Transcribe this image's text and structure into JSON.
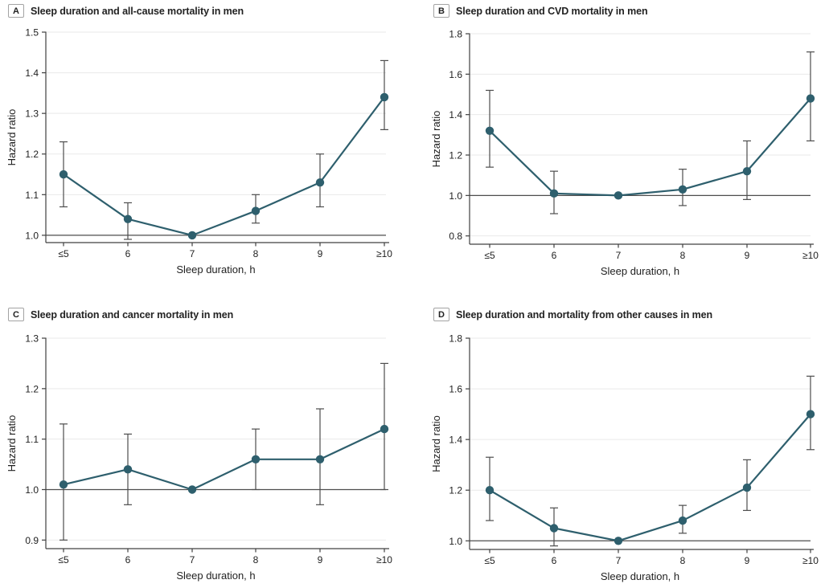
{
  "figure": {
    "description": "Four-panel hazard ratio figure of sleep duration and mortality in men",
    "panels": [
      "A",
      "B",
      "C",
      "D"
    ]
  },
  "colors": {
    "series": "#2E5F6D",
    "error_bar": "#4d4d4d",
    "axis": "#404040",
    "grid": "#e9e9e9",
    "reference_line": "#4d4d4d",
    "text": "#1f1f1f"
  },
  "chart_data": [
    {
      "panel": "A",
      "type": "line",
      "title": "Sleep duration and all-cause mortality in men",
      "xlabel": "Sleep duration, h",
      "ylabel": "Hazard ratio",
      "categories": [
        "≤5",
        "6",
        "7",
        "8",
        "9",
        "≥10"
      ],
      "values": [
        1.15,
        1.04,
        1.0,
        1.06,
        1.13,
        1.34
      ],
      "ci_low": [
        1.07,
        0.99,
        null,
        1.03,
        1.07,
        1.26
      ],
      "ci_high": [
        1.23,
        1.08,
        null,
        1.1,
        1.2,
        1.43
      ],
      "yticks": [
        1.0,
        1.1,
        1.2,
        1.3,
        1.4,
        1.5
      ],
      "ylim": [
        0.982,
        1.5
      ],
      "reference_line": 1.0,
      "grid": true,
      "legend": "none"
    },
    {
      "panel": "B",
      "type": "line",
      "title": "Sleep duration and CVD mortality in men",
      "xlabel": "Sleep duration, h",
      "ylabel": "Hazard ratio",
      "categories": [
        "≤5",
        "6",
        "7",
        "8",
        "9",
        "≥10"
      ],
      "values": [
        1.32,
        1.01,
        1.0,
        1.03,
        1.12,
        1.48
      ],
      "ci_low": [
        1.14,
        0.91,
        null,
        0.95,
        0.98,
        1.27
      ],
      "ci_high": [
        1.52,
        1.12,
        null,
        1.13,
        1.27,
        1.71
      ],
      "yticks": [
        0.8,
        1.0,
        1.2,
        1.4,
        1.6,
        1.8
      ],
      "ylim": [
        0.759,
        1.8
      ],
      "reference_line": 1.0,
      "grid": true,
      "legend": "none"
    },
    {
      "panel": "C",
      "type": "line",
      "title": "Sleep duration and cancer mortality in men",
      "xlabel": "Sleep duration, h",
      "ylabel": "Hazard ratio",
      "categories": [
        "≤5",
        "6",
        "7",
        "8",
        "9",
        "≥10"
      ],
      "values": [
        1.01,
        1.04,
        1.0,
        1.06,
        1.06,
        1.12
      ],
      "ci_low": [
        0.9,
        0.97,
        null,
        1.0,
        0.97,
        1.0
      ],
      "ci_high": [
        1.13,
        1.11,
        null,
        1.12,
        1.16,
        1.25
      ],
      "yticks": [
        0.9,
        1.0,
        1.1,
        1.2,
        1.3
      ],
      "ylim": [
        0.883,
        1.3
      ],
      "reference_line": 1.0,
      "grid": true,
      "legend": "none"
    },
    {
      "panel": "D",
      "type": "line",
      "title": "Sleep duration and mortality from other causes in men",
      "xlabel": "Sleep duration, h",
      "ylabel": "Hazard ratio",
      "categories": [
        "≤5",
        "6",
        "7",
        "8",
        "9",
        "≥10"
      ],
      "values": [
        1.2,
        1.05,
        1.0,
        1.08,
        1.21,
        1.5
      ],
      "ci_low": [
        1.08,
        0.98,
        null,
        1.03,
        1.12,
        1.36
      ],
      "ci_high": [
        1.33,
        1.13,
        null,
        1.14,
        1.32,
        1.65
      ],
      "yticks": [
        1.0,
        1.2,
        1.4,
        1.6,
        1.8
      ],
      "ylim": [
        0.966,
        1.8
      ],
      "reference_line": 1.0,
      "grid": true,
      "legend": "none"
    }
  ]
}
